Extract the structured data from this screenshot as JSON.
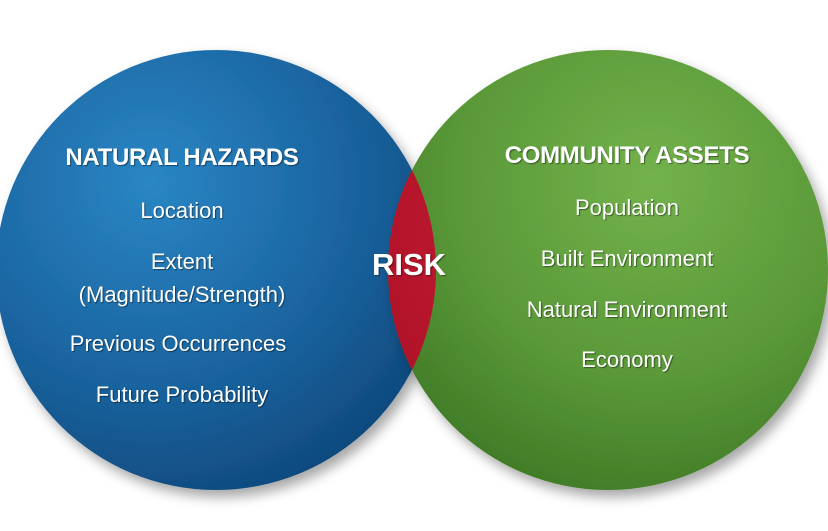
{
  "left_set": {
    "title": "NATURAL HAZARDS",
    "items": [
      "Location",
      "Extent",
      "(Magnitude/Strength)",
      "Previous Occurrences",
      "Future Probability"
    ],
    "color": "#1f6ea8"
  },
  "right_set": {
    "title": "COMMUNITY ASSETS",
    "items": [
      "Population",
      "Built Environment",
      "Natural Environment",
      "Economy"
    ],
    "color": "#5c9b3a"
  },
  "intersection": {
    "label": "RISK",
    "color": "#c0142c"
  }
}
